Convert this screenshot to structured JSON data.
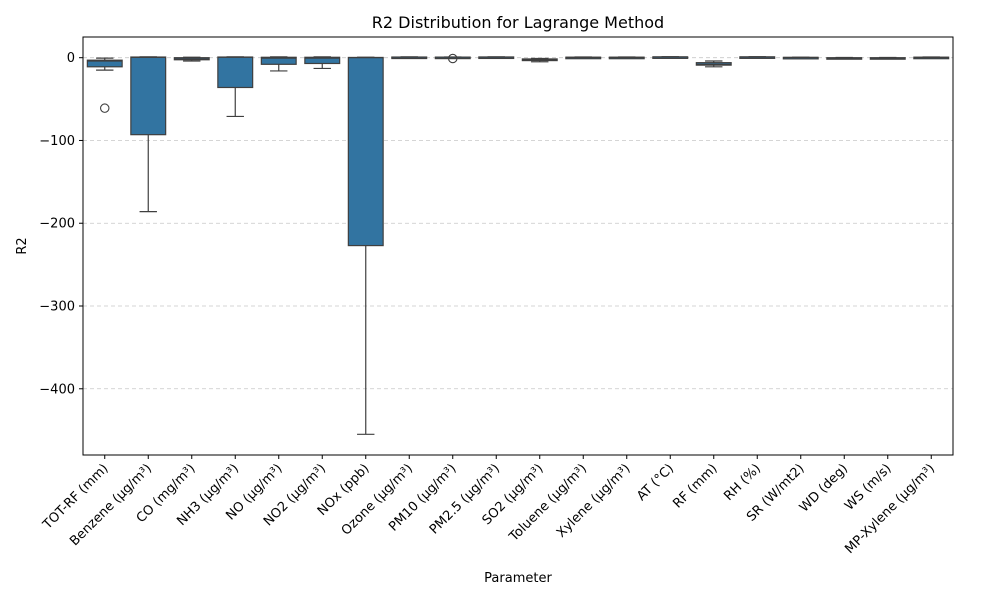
{
  "chart_data": {
    "type": "box",
    "title": "R2 Distribution for Lagrange Method",
    "xlabel": "Parameter",
    "ylabel": "R2",
    "ylim": [
      -480,
      25
    ],
    "yticks": [
      0,
      -100,
      -200,
      -300,
      -400
    ],
    "ytick_labels": [
      "0",
      "−100",
      "−200",
      "−300",
      "−400"
    ],
    "grid": "y-dashed",
    "box_color": "#3274a1",
    "categories": [
      "TOT-RF (mm)",
      "Benzene (µg/m³)",
      "CO (mg/m³)",
      "NH3 (µg/m³)",
      "NO (µg/m³)",
      "NO2 (µg/m³)",
      "NOx (ppb)",
      "Ozone (µg/m³)",
      "PM10 (µg/m³)",
      "PM2.5 (µg/m³)",
      "SO2 (µg/m³)",
      "Toluene (µg/m³)",
      "Xylene (µg/m³)",
      "AT (°C)",
      "RF (mm)",
      "RH (%)",
      "SR (W/mt2)",
      "WD (deg)",
      "WS (m/s)",
      "MP-Xylene (µg/m³)"
    ],
    "boxes": [
      {
        "whislo": -15,
        "q1": -11,
        "med": -4,
        "q3": -3,
        "whishi": -0.5,
        "fliers": [
          -61
        ]
      },
      {
        "whislo": -186,
        "q1": -93,
        "med": 0.3,
        "q3": 0.8,
        "whishi": 1,
        "fliers": []
      },
      {
        "whislo": -4,
        "q1": -2.5,
        "med": -1.5,
        "q3": 0,
        "whishi": 0.5,
        "fliers": []
      },
      {
        "whislo": -71,
        "q1": -36,
        "med": 0.5,
        "q3": 0.8,
        "whishi": 1,
        "fliers": []
      },
      {
        "whislo": -16,
        "q1": -8,
        "med": -0.5,
        "q3": 0.5,
        "whishi": 1,
        "fliers": []
      },
      {
        "whislo": -13,
        "q1": -7,
        "med": -0.5,
        "q3": 0.5,
        "whishi": 1,
        "fliers": []
      },
      {
        "whislo": -455,
        "q1": -227,
        "med": 0,
        "q3": 0.3,
        "whishi": 0.5,
        "fliers": []
      },
      {
        "whislo": 0.2,
        "q1": 0.4,
        "med": 0.6,
        "q3": 0.8,
        "whishi": 1,
        "fliers": []
      },
      {
        "whislo": 0.2,
        "q1": 0.4,
        "med": 0.6,
        "q3": 0.7,
        "whishi": 0.8,
        "fliers": [
          -1
        ]
      },
      {
        "whislo": 0.3,
        "q1": 0.5,
        "med": 0.7,
        "q3": 0.9,
        "whishi": 1,
        "fliers": []
      },
      {
        "whislo": -5,
        "q1": -3.5,
        "med": -2.5,
        "q3": -1.5,
        "whishi": -1,
        "fliers": []
      },
      {
        "whislo": 0,
        "q1": 0.2,
        "med": 0.4,
        "q3": 0.6,
        "whishi": 0.8,
        "fliers": []
      },
      {
        "whislo": 0,
        "q1": 0.2,
        "med": 0.4,
        "q3": 0.6,
        "whishi": 0.8,
        "fliers": []
      },
      {
        "whislo": 0.5,
        "q1": 0.7,
        "med": 0.9,
        "q3": 1,
        "whishi": 1.2,
        "fliers": []
      },
      {
        "whislo": -11,
        "q1": -9,
        "med": -8,
        "q3": -6,
        "whishi": -4,
        "fliers": []
      },
      {
        "whislo": 0.4,
        "q1": 0.6,
        "med": 0.8,
        "q3": 1,
        "whishi": 1.2,
        "fliers": []
      },
      {
        "whislo": -0.2,
        "q1": 0,
        "med": 0.2,
        "q3": 0.4,
        "whishi": 0.5,
        "fliers": []
      },
      {
        "whislo": -1.5,
        "q1": -1,
        "med": -0.5,
        "q3": 0,
        "whishi": 0.2,
        "fliers": []
      },
      {
        "whislo": -1.5,
        "q1": -1,
        "med": -0.5,
        "q3": 0,
        "whishi": 0.2,
        "fliers": []
      },
      {
        "whislo": 0,
        "q1": 0.2,
        "med": 0.4,
        "q3": 0.6,
        "whishi": 0.8,
        "fliers": []
      }
    ]
  }
}
